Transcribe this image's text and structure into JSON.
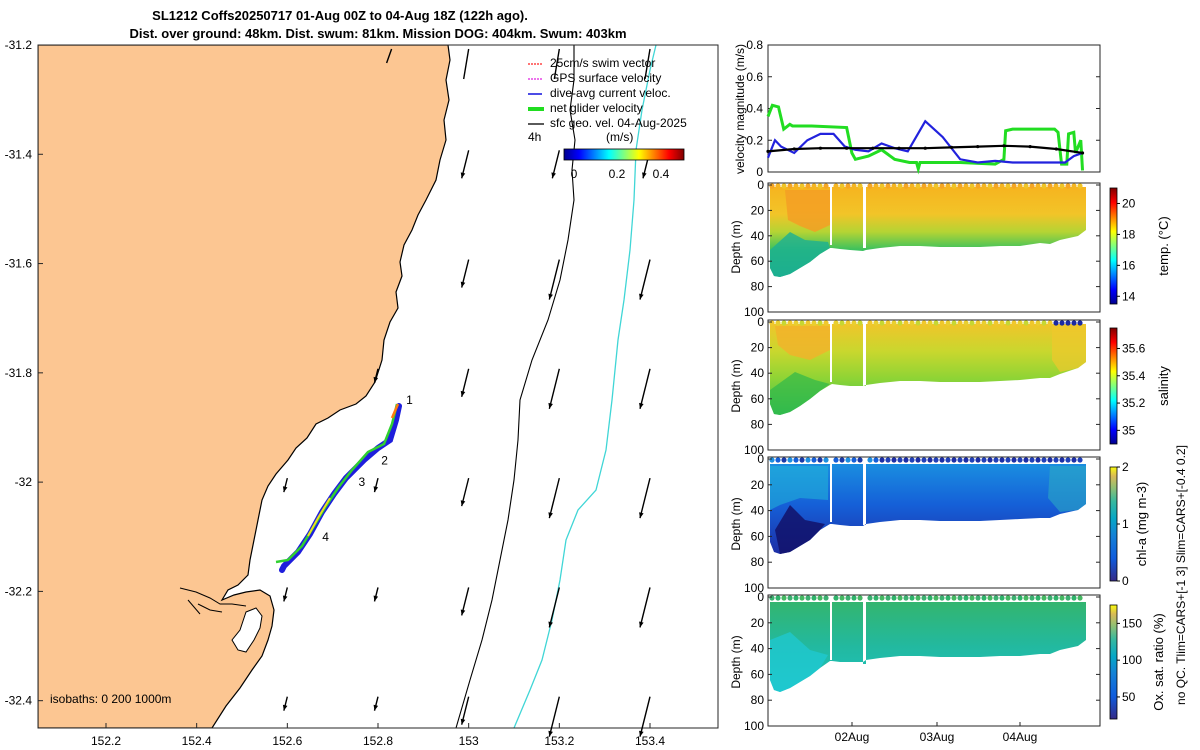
{
  "title": {
    "line1": "SL1212 Coffs20250717 01-Aug 00Z to 04-Aug 18Z (122h ago).",
    "line2": "Dist. over ground: 48km. Dist. swum: 81km. Mission DOG: 404km. Swum: 403km"
  },
  "colors": {
    "land": "#fcc692",
    "track_swim": "#1e1edc",
    "contour": "#000000",
    "shelf": "#40d6d6",
    "net": "#22dd22",
    "dive": "#2222dd"
  },
  "chart_data": [
    {
      "type": "map",
      "name": "glider-track-map",
      "xlim": [
        152.05,
        153.55
      ],
      "ylim": [
        -32.45,
        -31.2
      ],
      "x_ticks": [
        152.2,
        152.4,
        152.6,
        152.8,
        153,
        153.2,
        153.4
      ],
      "x_tick_labels": [
        "152.2",
        "152.4",
        "152.6",
        "152.8",
        "153",
        "153.2",
        "153.4"
      ],
      "y_ticks": [
        -31.2,
        -31.4,
        -31.6,
        -31.8,
        -32,
        -32.2,
        -32.4
      ],
      "y_tick_labels": [
        "-31.2",
        "-31.4",
        "-31.6",
        "-31.8",
        "-32",
        "-32.2",
        "-32.4"
      ],
      "legend": [
        {
          "label": "25cm/s swim vector",
          "color": "#ff2020",
          "style": "arrow"
        },
        {
          "label": "GPS surface velocity",
          "color": "#e020e0",
          "style": "arrow"
        },
        {
          "label": "dive-avg current veloc.",
          "color": "#2020e0",
          "style": "arrow"
        },
        {
          "label": "net glider velocity",
          "color": "#20dd20",
          "style": "thick"
        },
        {
          "label": "sfc geo. vel. 04-Aug-2025",
          "color": "#000000",
          "style": "arrow"
        }
      ],
      "time_step_label": "4h",
      "colorbar": {
        "label": "(m/s)",
        "ticks": [
          "0",
          "0.2",
          "0.4"
        ],
        "range": [
          -0.05,
          0.5
        ]
      },
      "isobath_label": "isobaths: 0   200  1000m",
      "day_markers": [
        {
          "label": "1",
          "lon": 152.84,
          "lat": -31.85
        },
        {
          "label": "2",
          "lon": 152.785,
          "lat": -31.96
        },
        {
          "label": "3",
          "lon": 152.735,
          "lat": -32.0
        },
        {
          "label": "4",
          "lon": 152.655,
          "lat": -32.1
        }
      ],
      "track": [
        [
          152.83,
          -31.85
        ],
        [
          152.82,
          -31.88
        ],
        [
          152.8,
          -31.93
        ],
        [
          152.77,
          -31.95
        ],
        [
          152.72,
          -32.0
        ],
        [
          152.68,
          -32.06
        ],
        [
          152.64,
          -32.11
        ],
        [
          152.59,
          -32.14
        ]
      ]
    },
    {
      "type": "line",
      "name": "velocity-magnitude",
      "ylabel": "velocity magnitude (m/s)",
      "ylim": [
        0,
        0.8
      ],
      "y_ticks": [
        0,
        0.2,
        0.4,
        0.6,
        0.8
      ],
      "xlim": [
        0,
        3.8
      ],
      "series": [
        {
          "name": "net glider velocity",
          "color": "#22dd22",
          "x": [
            0,
            0.05,
            0.12,
            0.18,
            0.25,
            0.28,
            0.5,
            0.9,
            0.96,
            1.0,
            1.15,
            1.3,
            1.45,
            1.62,
            1.7,
            1.72,
            1.74,
            1.9,
            2.2,
            2.6,
            2.7,
            2.72,
            2.8,
            3.0,
            3.15,
            3.28,
            3.32,
            3.36,
            3.42,
            3.44,
            3.5,
            3.52,
            3.58,
            3.6
          ],
          "y": [
            0.35,
            0.42,
            0.41,
            0.27,
            0.3,
            0.29,
            0.29,
            0.28,
            0.12,
            0.08,
            0.1,
            0.14,
            0.08,
            0.06,
            0.06,
            0.02,
            0.06,
            0.06,
            0.06,
            0.05,
            0.08,
            0.26,
            0.27,
            0.27,
            0.27,
            0.27,
            0.25,
            0.05,
            0.05,
            0.24,
            0.25,
            0.12,
            0.2,
            0.01
          ]
        },
        {
          "name": "dive-avg current veloc.",
          "color": "#2222dd",
          "x": [
            0,
            0.08,
            0.15,
            0.3,
            0.45,
            0.6,
            0.75,
            0.88,
            1.0,
            1.15,
            1.3,
            1.45,
            1.6,
            1.8,
            2.0,
            2.2,
            2.4,
            2.6,
            2.8,
            3.0,
            3.2,
            3.4,
            3.5,
            3.6
          ],
          "y": [
            0.09,
            0.2,
            0.16,
            0.12,
            0.2,
            0.24,
            0.24,
            0.16,
            0.14,
            0.13,
            0.18,
            0.15,
            0.13,
            0.32,
            0.22,
            0.08,
            0.06,
            0.07,
            0.06,
            0.06,
            0.06,
            0.06,
            0.1,
            0.12
          ]
        },
        {
          "name": "sfc geo. vel.",
          "color": "#000000",
          "x": [
            0,
            0.3,
            0.6,
            0.9,
            1.2,
            1.5,
            1.8,
            2.1,
            2.4,
            2.7,
            3.0,
            3.3,
            3.6
          ],
          "y": [
            0.13,
            0.145,
            0.15,
            0.15,
            0.15,
            0.15,
            0.15,
            0.155,
            0.16,
            0.165,
            0.16,
            0.145,
            0.12
          ]
        }
      ]
    },
    {
      "type": "heatmap",
      "name": "temperature-section",
      "ylabel": "Depth (m)",
      "cblabel": "temp. (°C)",
      "cb_ticks": [
        "14",
        "16",
        "18",
        "20"
      ],
      "cb_range": [
        13.5,
        21
      ],
      "y_ticks": [
        "0",
        "20",
        "40",
        "60",
        "80",
        "100"
      ]
    },
    {
      "type": "heatmap",
      "name": "salinity-section",
      "ylabel": "Depth (m)",
      "cblabel": "salinity",
      "cb_ticks": [
        "35",
        "35.2",
        "35.4",
        "35.6"
      ],
      "cb_range": [
        34.9,
        35.75
      ],
      "y_ticks": [
        "0",
        "20",
        "40",
        "60",
        "80",
        "100"
      ]
    },
    {
      "type": "heatmap",
      "name": "chlorophyll-section",
      "ylabel": "Depth (m)",
      "cblabel": "chl-a (mg m-3)",
      "cb_ticks": [
        "0",
        "1",
        "2"
      ],
      "cb_range": [
        0,
        2
      ],
      "y_ticks": [
        "0",
        "20",
        "40",
        "60",
        "80",
        "100"
      ]
    },
    {
      "type": "heatmap",
      "name": "oxygen-section",
      "ylabel": "Depth (m)",
      "cblabel": "Ox. sat. ratio (%)",
      "cb_ticks": [
        "50",
        "100",
        "150"
      ],
      "cb_range": [
        20,
        175
      ],
      "y_ticks": [
        "0",
        "20",
        "40",
        "60",
        "80",
        "100"
      ],
      "x_tick_labels": [
        "02Aug",
        "03Aug",
        "04Aug"
      ]
    }
  ],
  "side_notes": {
    "salinity": "no QC. Tlim=CARS+[-1 3] Slim=CARS+[-0.4 0.2]"
  }
}
